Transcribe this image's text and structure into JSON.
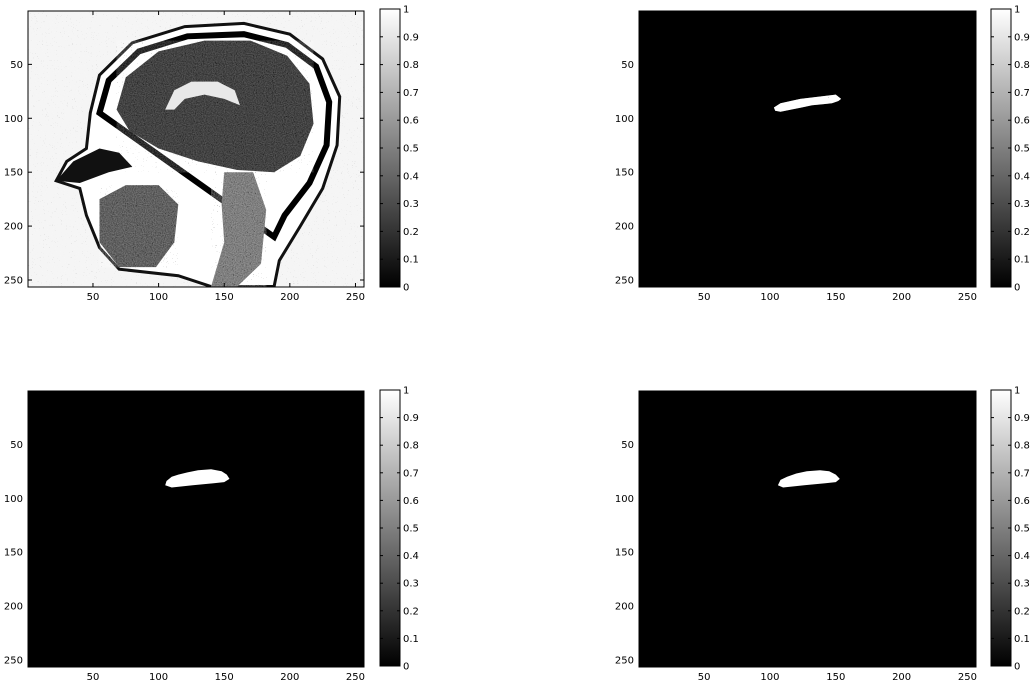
{
  "chart_data": [
    {
      "type": "heatmap",
      "title": "",
      "xlabel": "",
      "ylabel": "",
      "xlim": [
        0.5,
        256.5
      ],
      "ylim": [
        256.5,
        0.5
      ],
      "x_ticks": [
        50,
        100,
        150,
        200,
        250
      ],
      "y_ticks": [
        50,
        100,
        150,
        200,
        250
      ],
      "colormap": "gray",
      "clim": [
        0,
        1
      ],
      "colorbar_ticks": [
        "0",
        "0.1",
        "0.2",
        "0.3",
        "0.4",
        "0.5",
        "0.6",
        "0.7",
        "0.8",
        "0.9",
        "1"
      ],
      "content": "binarized sagittal MRI slice of a head (noisy)",
      "mask": []
    },
    {
      "type": "heatmap",
      "title": "",
      "xlabel": "",
      "ylabel": "",
      "xlim": [
        0.5,
        256.5
      ],
      "ylim": [
        256.5,
        0.5
      ],
      "x_ticks": [
        50,
        100,
        150,
        200,
        250
      ],
      "y_ticks": [
        50,
        100,
        150,
        200,
        250
      ],
      "colormap": "gray",
      "clim": [
        0,
        1
      ],
      "colorbar_ticks": [
        "0",
        "0.1",
        "0.2",
        "0.3",
        "0.4",
        "0.5",
        "0.6",
        "0.7",
        "0.8",
        "0.9",
        "1"
      ],
      "content": "segmented region (speckled)",
      "mask": [
        [
          78,
          150
        ],
        [
          82,
          123
        ],
        [
          86,
          108
        ],
        [
          90,
          103
        ],
        [
          93,
          104
        ],
        [
          94,
          108
        ],
        [
          92,
          116
        ],
        [
          90,
          124
        ],
        [
          88,
          132
        ],
        [
          87,
          140
        ],
        [
          86,
          147
        ],
        [
          84,
          152
        ],
        [
          82,
          154
        ],
        [
          78,
          150
        ]
      ]
    },
    {
      "type": "heatmap",
      "title": "",
      "xlabel": "",
      "ylabel": "",
      "xlim": [
        0.5,
        256.5
      ],
      "ylim": [
        256.5,
        0.5
      ],
      "x_ticks": [
        50,
        100,
        150,
        200,
        250
      ],
      "y_ticks": [
        50,
        100,
        150,
        200,
        250
      ],
      "colormap": "gray",
      "clim": [
        0,
        1
      ],
      "colorbar_ticks": [
        "0",
        "0.1",
        "0.2",
        "0.3",
        "0.4",
        "0.5",
        "0.6",
        "0.7",
        "0.8",
        "0.9",
        "1"
      ],
      "content": "segmented region (filled)",
      "mask": [
        [
          73,
          140
        ],
        [
          74,
          130
        ],
        [
          76,
          122
        ],
        [
          78,
          115
        ],
        [
          80,
          110
        ],
        [
          84,
          106
        ],
        [
          88,
          105
        ],
        [
          90,
          110
        ],
        [
          89,
          118
        ],
        [
          88,
          126
        ],
        [
          87,
          134
        ],
        [
          86,
          142
        ],
        [
          85,
          150
        ],
        [
          82,
          154
        ],
        [
          78,
          152
        ],
        [
          75,
          148
        ],
        [
          73,
          140
        ]
      ]
    },
    {
      "type": "heatmap",
      "title": "",
      "xlabel": "",
      "ylabel": "",
      "xlim": [
        0.5,
        256.5
      ],
      "ylim": [
        256.5,
        0.5
      ],
      "x_ticks": [
        50,
        100,
        150,
        200,
        250
      ],
      "y_ticks": [
        50,
        100,
        150,
        200,
        250
      ],
      "colormap": "gray",
      "clim": [
        0,
        1
      ],
      "colorbar_ticks": [
        "0",
        "0.1",
        "0.2",
        "0.3",
        "0.4",
        "0.5",
        "0.6",
        "0.7",
        "0.8",
        "0.9",
        "1"
      ],
      "content": "segmented region (smoothed)",
      "mask": [
        [
          74,
          138
        ],
        [
          75,
          128
        ],
        [
          77,
          120
        ],
        [
          80,
          113
        ],
        [
          83,
          108
        ],
        [
          88,
          106
        ],
        [
          90,
          110
        ],
        [
          89,
          118
        ],
        [
          88,
          126
        ],
        [
          87,
          134
        ],
        [
          86,
          142
        ],
        [
          85,
          150
        ],
        [
          82,
          153
        ],
        [
          78,
          150
        ],
        [
          75,
          145
        ],
        [
          74,
          138
        ]
      ]
    }
  ]
}
